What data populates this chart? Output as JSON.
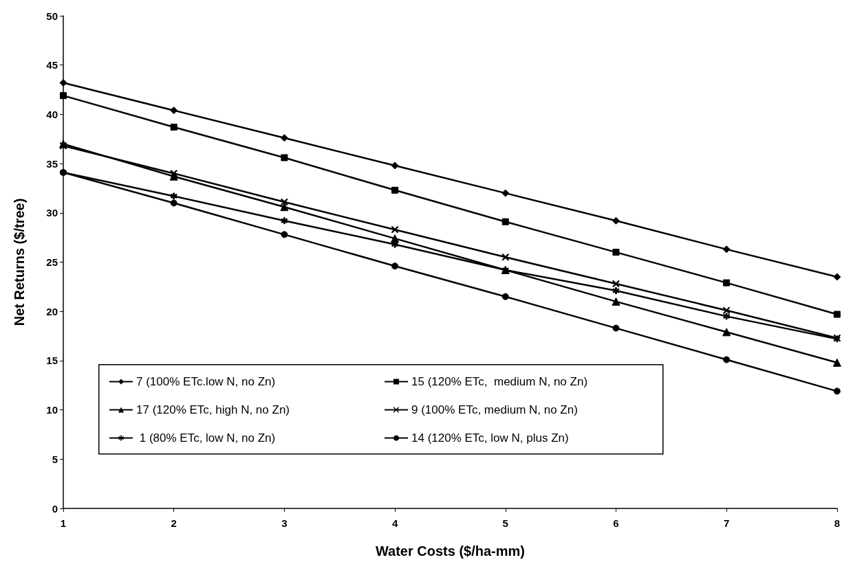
{
  "chart_data": {
    "type": "line",
    "xlabel": "Water Costs ($/ha-mm)",
    "ylabel": "Net Returns ($/tree)",
    "x": [
      1,
      2,
      3,
      4,
      5,
      6,
      7,
      8
    ],
    "xlim": [
      1,
      8
    ],
    "xticks": [
      1,
      2,
      3,
      4,
      5,
      6,
      7,
      8
    ],
    "ylim": [
      0,
      50
    ],
    "yticks": [
      0,
      5,
      10,
      15,
      20,
      25,
      30,
      35,
      40,
      45,
      50
    ],
    "grid": false,
    "legend": "bottom left",
    "line_style": "solid",
    "series": [
      {
        "name": "7 (100% ETc.low N, no Zn)",
        "color": "#000000",
        "marker": "diamond",
        "values": [
          43.2,
          40.4,
          37.6,
          34.8,
          32.0,
          29.2,
          26.3,
          23.5
        ]
      },
      {
        "name": "15 (120% ETc,  medium N, no Zn)",
        "color": "#000000",
        "marker": "square",
        "values": [
          41.9,
          38.7,
          35.6,
          32.3,
          29.1,
          26.0,
          22.9,
          19.7
        ]
      },
      {
        "name": "17 (120% ETc, high N, no Zn)",
        "color": "#000000",
        "marker": "triangle",
        "values": [
          37.0,
          33.7,
          30.6,
          27.4,
          24.2,
          21.0,
          17.9,
          14.8
        ]
      },
      {
        "name": "9 (100% ETc, medium N, no Zn)",
        "color": "#000000",
        "marker": "cross",
        "values": [
          36.8,
          34.0,
          31.1,
          28.3,
          25.5,
          22.8,
          20.1,
          17.3
        ]
      },
      {
        "name": " 1 (80% ETc, low N, no Zn)",
        "color": "#000000",
        "marker": "star",
        "values": [
          34.1,
          31.7,
          29.2,
          26.8,
          24.2,
          22.1,
          19.5,
          17.2
        ]
      },
      {
        "name": "14 (120% ETc, low N, plus Zn)",
        "color": "#000000",
        "marker": "circle",
        "values": [
          34.1,
          31.0,
          27.8,
          24.6,
          21.5,
          18.3,
          15.1,
          11.9
        ]
      }
    ]
  }
}
